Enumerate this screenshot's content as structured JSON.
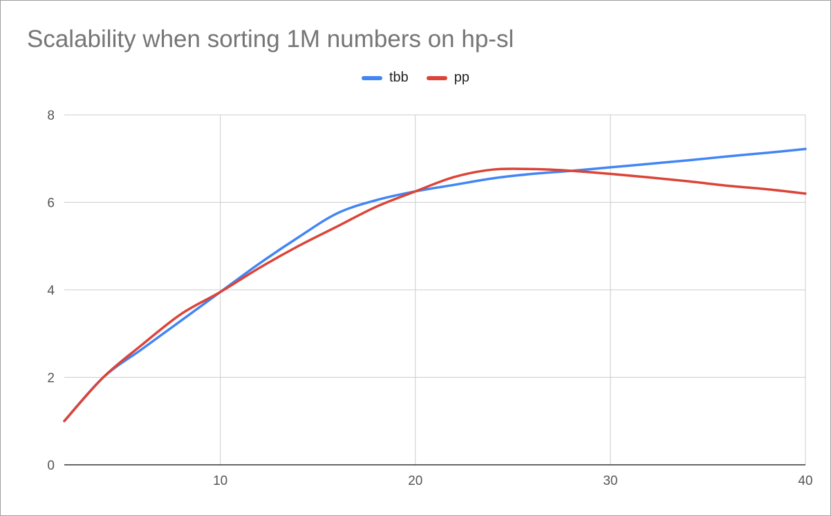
{
  "chart_data": {
    "type": "line",
    "title": "Scalability when sorting 1M numbers on hp-sl",
    "xlabel": "",
    "ylabel": "",
    "xlim": [
      2,
      40
    ],
    "ylim": [
      0,
      8
    ],
    "x_ticks": [
      10,
      20,
      30,
      40
    ],
    "y_ticks": [
      0,
      2,
      4,
      6,
      8
    ],
    "grid": true,
    "legend_position": "top",
    "series": [
      {
        "name": "tbb",
        "color": "#4285f4",
        "x": [
          2,
          4,
          6,
          8,
          10,
          12,
          14,
          16,
          18,
          20,
          22,
          24,
          26,
          28,
          30,
          32,
          34,
          36,
          38,
          40
        ],
        "y": [
          1.0,
          2.0,
          2.65,
          3.3,
          3.95,
          4.6,
          5.2,
          5.75,
          6.05,
          6.25,
          6.4,
          6.55,
          6.65,
          6.72,
          6.8,
          6.88,
          6.96,
          7.05,
          7.13,
          7.22
        ]
      },
      {
        "name": "pp",
        "color": "#db4437",
        "x": [
          2,
          4,
          6,
          8,
          10,
          12,
          14,
          16,
          18,
          20,
          22,
          24,
          26,
          28,
          30,
          32,
          34,
          36,
          38,
          40
        ],
        "y": [
          1.0,
          2.0,
          2.75,
          3.45,
          3.95,
          4.5,
          5.0,
          5.45,
          5.9,
          6.25,
          6.58,
          6.75,
          6.76,
          6.72,
          6.65,
          6.57,
          6.48,
          6.38,
          6.3,
          6.2
        ]
      }
    ]
  }
}
